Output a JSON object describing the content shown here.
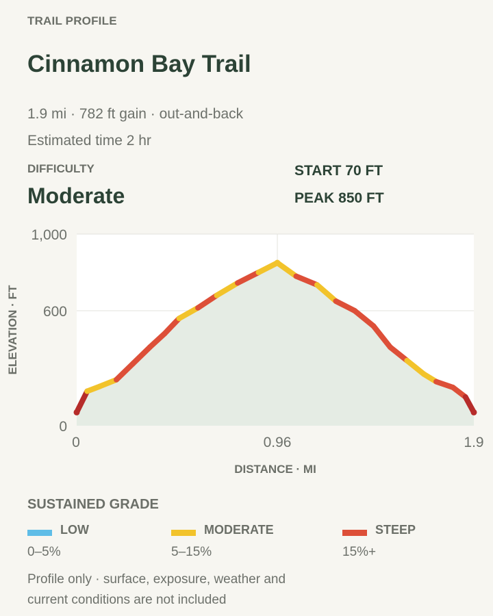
{
  "header": {
    "eyebrow": "TRAIL PROFILE",
    "title": "Cinnamon Bay Trail",
    "meta_line": "1.9 mi · 782 ft gain · out-and-back",
    "time_line": "Estimated time 2 hr"
  },
  "difficulty": {
    "label": "DIFFICULTY",
    "value": "Moderate"
  },
  "stats": {
    "start": "START 70 FT",
    "peak": "PEAK 850 FT"
  },
  "chart_data": {
    "type": "area",
    "xlabel": "DISTANCE · MI",
    "ylabel": "ELEVATION · FT",
    "xlim": [
      0,
      1.9
    ],
    "ylim": [
      0,
      1000
    ],
    "x_ticks": [
      0,
      0.96,
      1.9
    ],
    "x_tick_labels": [
      "0",
      "0.96",
      "1.9"
    ],
    "y_ticks": [
      0,
      600,
      1000
    ],
    "y_tick_labels": [
      "0",
      "600",
      "1,000"
    ],
    "grid": true,
    "series": [
      {
        "x": [
          0,
          0.05,
          0.11,
          0.19,
          0.27,
          0.35,
          0.42,
          0.49,
          0.58,
          0.67,
          0.77,
          0.87,
          0.96,
          1.05,
          1.15,
          1.24,
          1.33,
          1.42,
          1.5,
          1.58,
          1.66,
          1.72,
          1.8,
          1.86,
          1.9
        ],
        "y": [
          70,
          180,
          205,
          240,
          325,
          410,
          480,
          560,
          615,
          680,
          745,
          800,
          850,
          780,
          735,
          650,
          600,
          520,
          410,
          340,
          270,
          230,
          200,
          150,
          70
        ],
        "grade": [
          "steep",
          "moderate",
          "moderate",
          "steep",
          "steep",
          "steep",
          "steep",
          "moderate",
          "steep",
          "moderate",
          "steep",
          "moderate",
          "moderate",
          "steep",
          "moderate",
          "steep",
          "steep",
          "steep",
          "steep",
          "moderate",
          "moderate",
          "steep",
          "steep",
          "steep"
        ]
      }
    ]
  },
  "legend": {
    "title": "SUSTAINED GRADE",
    "items": [
      {
        "name": "LOW",
        "range": "0–5%",
        "color": "#5fbde7"
      },
      {
        "name": "MODERATE",
        "range": "5–15%",
        "color": "#f2c32b"
      },
      {
        "name": "STEEP",
        "range": "15%+",
        "color": "#dd4f38"
      }
    ]
  },
  "colors": {
    "area_fill": "#e5ece4",
    "steep_dark": "#b62c2a",
    "steep": "#dd4f38",
    "moderate": "#f2c32b"
  },
  "footnote": "Profile only · surface, exposure, weather and current conditions are not included"
}
